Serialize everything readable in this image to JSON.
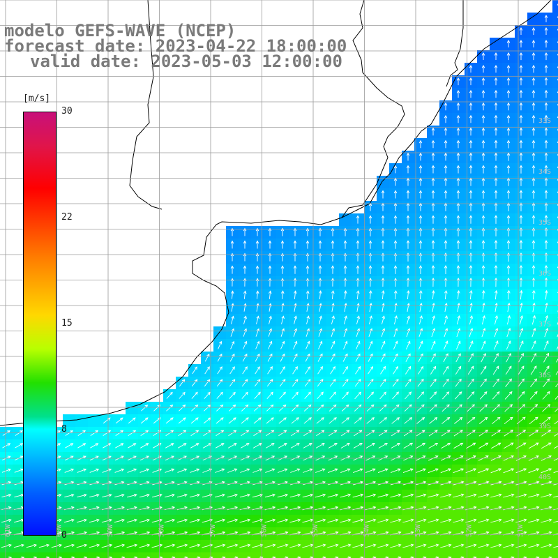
{
  "header": {
    "model": "modelo GEFS-WAVE (NCEP)",
    "forecast": "forecast date: 2023-04-22 18:00:00",
    "valid": "valid date: 2023-05-03 12:00:00"
  },
  "colorbar": {
    "units": "[m/s]",
    "ticks": [
      {
        "value": 30,
        "label": "30"
      },
      {
        "value": 22,
        "label": "22"
      },
      {
        "value": 15,
        "label": "15"
      },
      {
        "value": 8,
        "label": "8"
      },
      {
        "value": 0,
        "label": "0"
      }
    ],
    "range": [
      0,
      30
    ]
  },
  "map": {
    "lat_labels": [
      "33S",
      "34S",
      "35S",
      "36S",
      "37S",
      "38S",
      "39S",
      "40S"
    ],
    "lon_labels": [
      "61W",
      "60W",
      "59W",
      "58W",
      "57W",
      "56W",
      "55W",
      "54W",
      "53W",
      "52W",
      "51W"
    ],
    "colors": {
      "land": "#ffffff",
      "coast": "#000000",
      "grid": "#9a9a9a",
      "arrow": "#ffffff",
      "title": "#7a7a7a"
    }
  }
}
